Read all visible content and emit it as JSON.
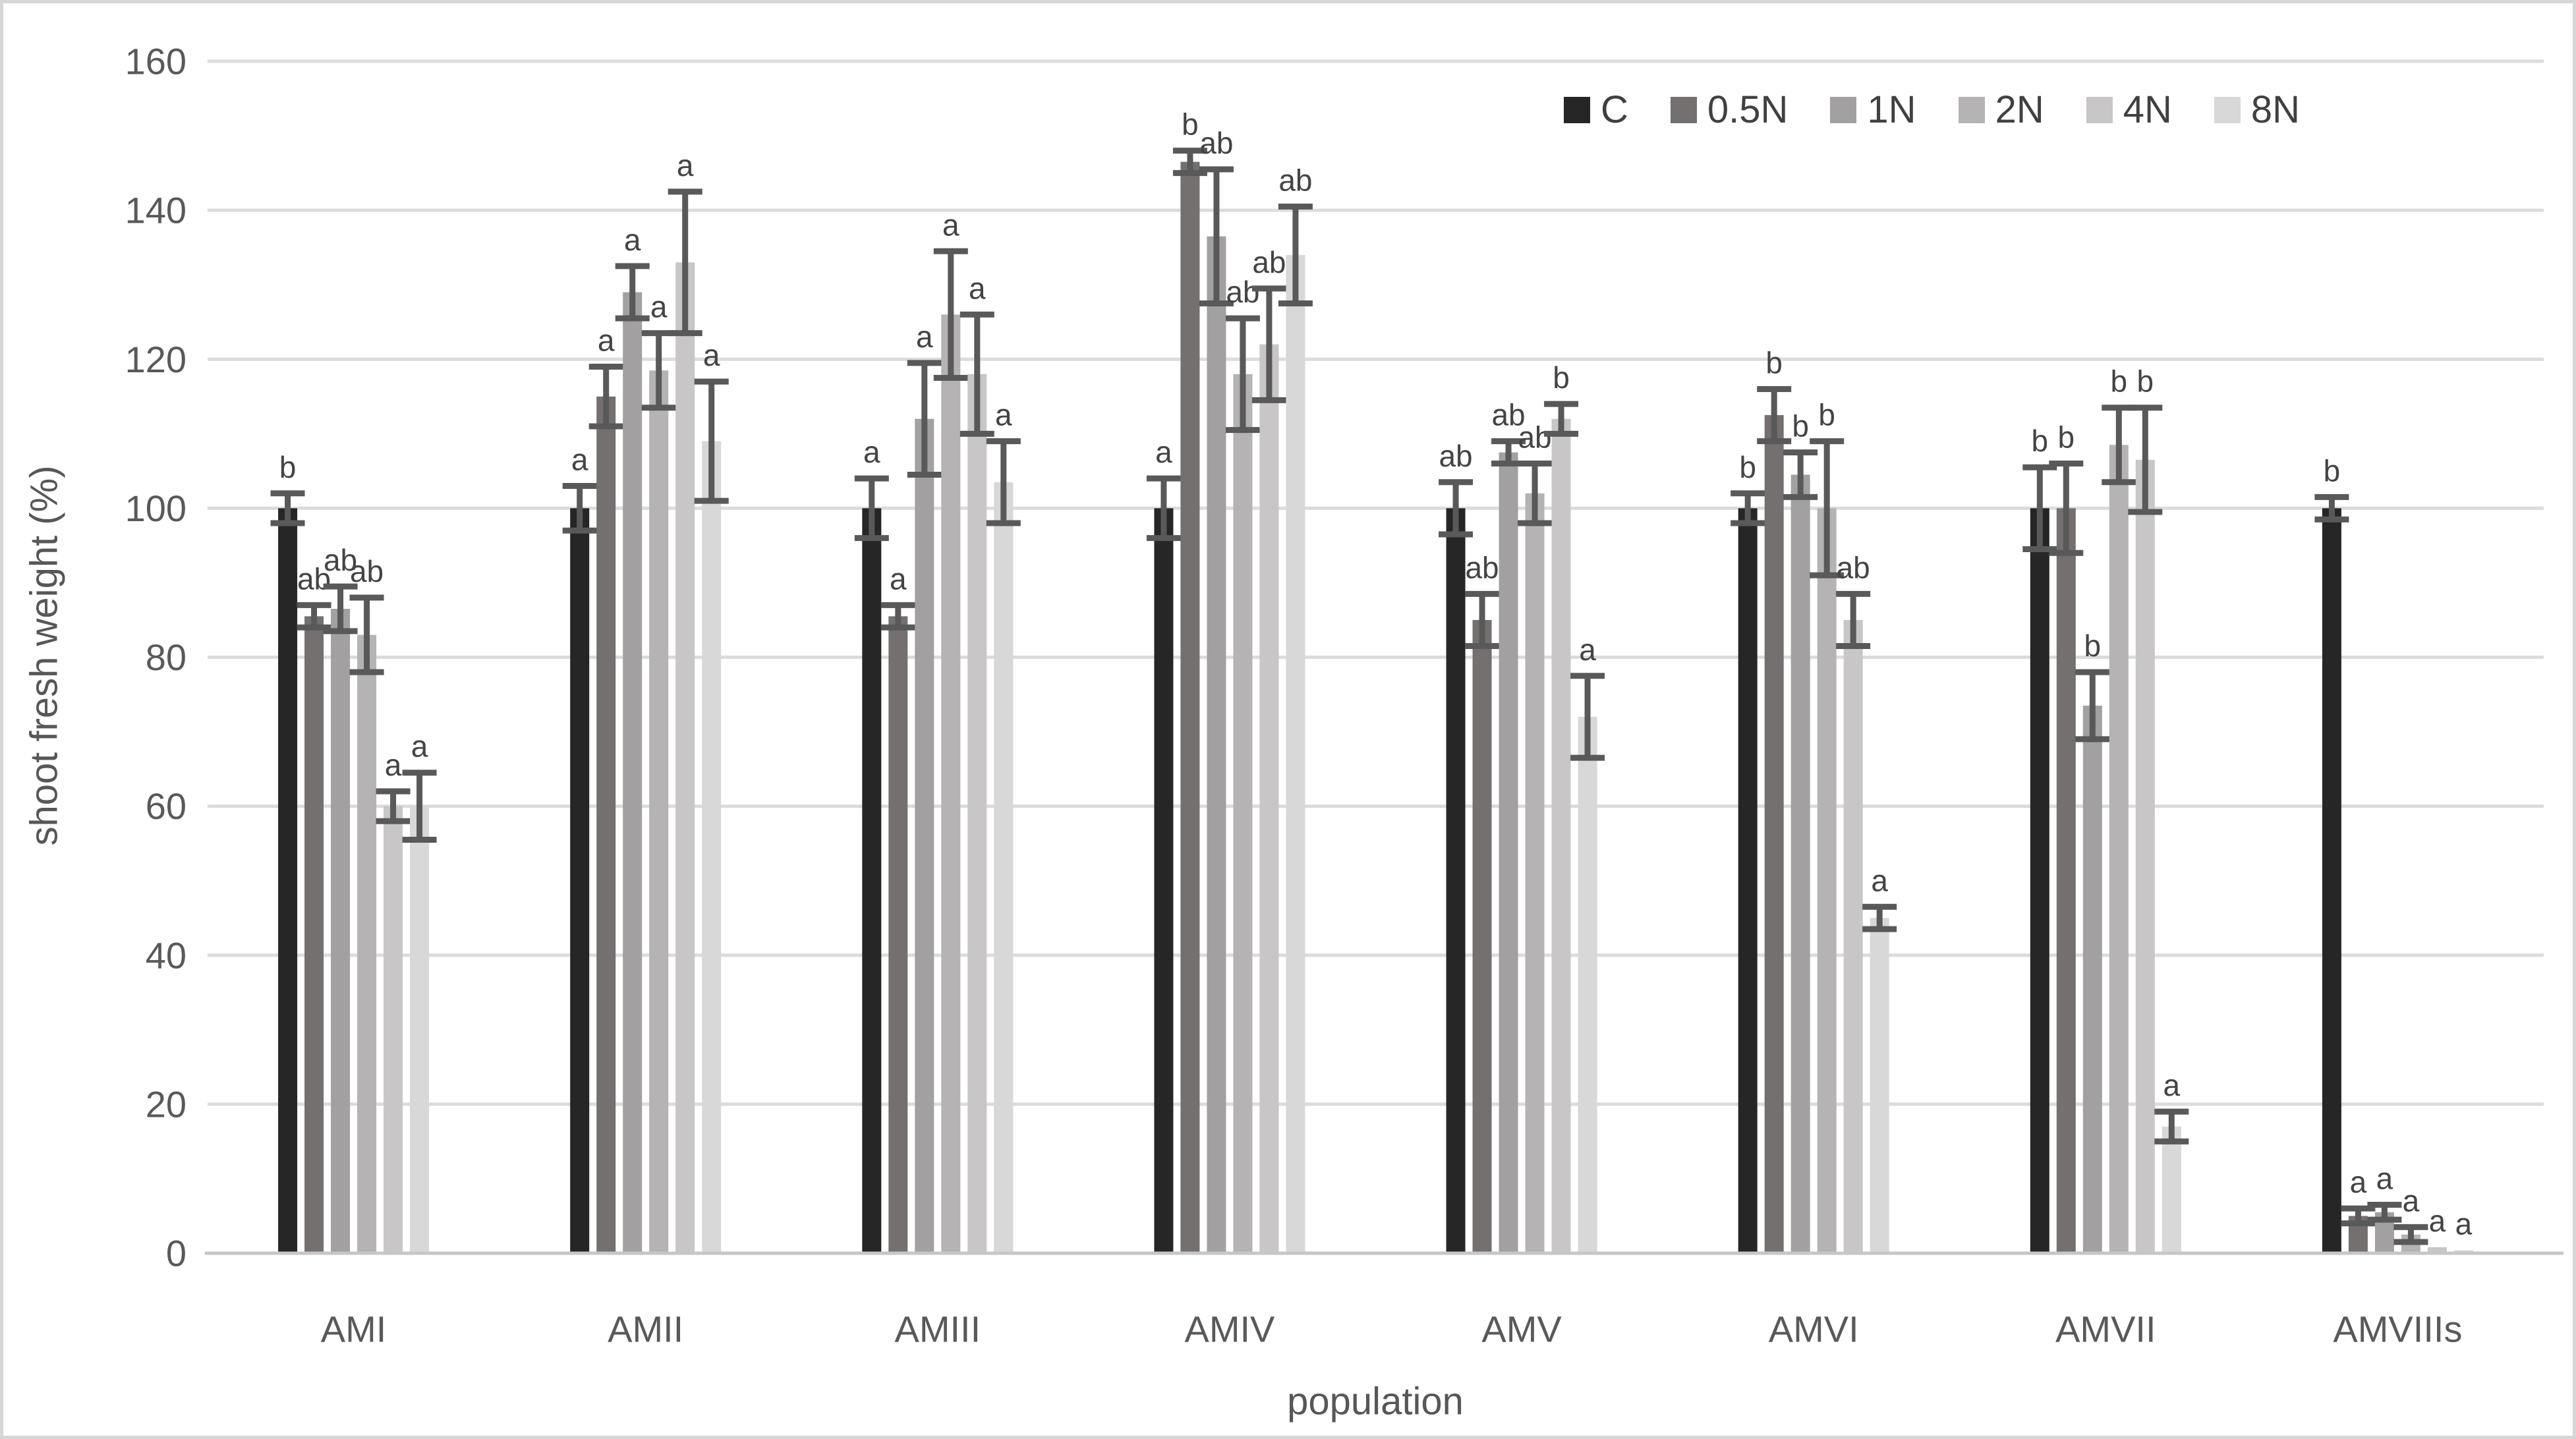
{
  "figure": {
    "background": "#ffffff",
    "border_color": "#d6d6d6"
  },
  "chart_data": {
    "type": "bar",
    "title": "",
    "xlabel": "population",
    "ylabel": "shoot fresh weight (%)",
    "ylim": [
      0,
      160
    ],
    "yticks": [
      0,
      20,
      40,
      60,
      80,
      100,
      120,
      140,
      160
    ],
    "grid": true,
    "legend_position": "top-right",
    "categories": [
      "AMI",
      "AMII",
      "AMIII",
      "AMIV",
      "AMV",
      "AMVI",
      "AMVII",
      "AMVIIIs"
    ],
    "series": [
      {
        "name": "C",
        "color": "#262626",
        "values": [
          100,
          100,
          100,
          100,
          100,
          100,
          100,
          100
        ],
        "errors": [
          2,
          3,
          4,
          4,
          3.5,
          2,
          5.5,
          1.5
        ],
        "letters": [
          "b",
          "a",
          "a",
          "a",
          "ab",
          "b",
          "b",
          "b"
        ]
      },
      {
        "name": "0.5N",
        "color": "#757070",
        "values": [
          85.5,
          115,
          85.5,
          146.5,
          85,
          112.5,
          100,
          5
        ],
        "errors": [
          1.5,
          4,
          1.5,
          1.5,
          3.5,
          3.5,
          6,
          1
        ],
        "letters": [
          "ab",
          "a",
          "a",
          "b",
          "ab",
          "b",
          "b",
          "a"
        ]
      },
      {
        "name": "1N",
        "color": "#a2a0a0",
        "values": [
          86.5,
          129,
          112,
          136.5,
          107.5,
          104.5,
          73.5,
          5.5
        ],
        "errors": [
          3,
          3.5,
          7.5,
          9,
          1.5,
          3,
          4.5,
          1
        ],
        "letters": [
          "ab",
          "a",
          "a",
          "ab",
          "ab",
          "b",
          "b",
          "a"
        ]
      },
      {
        "name": "2N",
        "color": "#b5b3b3",
        "values": [
          83,
          118.5,
          126,
          118,
          102,
          100,
          108.5,
          2.5
        ],
        "errors": [
          5,
          5,
          8.5,
          7.5,
          4,
          9,
          5,
          1
        ],
        "letters": [
          "ab",
          "a",
          "a",
          "ab",
          "ab",
          "b",
          "b",
          "a"
        ]
      },
      {
        "name": "4N",
        "color": "#c8c6c6",
        "values": [
          60,
          133,
          118,
          122,
          112,
          85,
          106.5,
          0.8
        ],
        "errors": [
          2,
          9.5,
          8,
          7.5,
          2,
          3.5,
          7,
          0
        ],
        "letters": [
          "a",
          "a",
          "a",
          "ab",
          "b",
          "ab",
          "b",
          "a"
        ]
      },
      {
        "name": "8N",
        "color": "#d9d8d8",
        "values": [
          60,
          109,
          103.5,
          134,
          72,
          45,
          17,
          0.4
        ],
        "errors": [
          4.5,
          8,
          5.5,
          6.5,
          5.5,
          1.5,
          2,
          0
        ],
        "letters": [
          "a",
          "a",
          "a",
          "ab",
          "a",
          "a",
          "a",
          "a"
        ]
      }
    ],
    "error_bar_color": "#595959",
    "letter_color": "#444444",
    "axis_text_color": "#595959",
    "gridline_color": "#dcdcdc",
    "axis_line_color": "#c6c6c6"
  }
}
